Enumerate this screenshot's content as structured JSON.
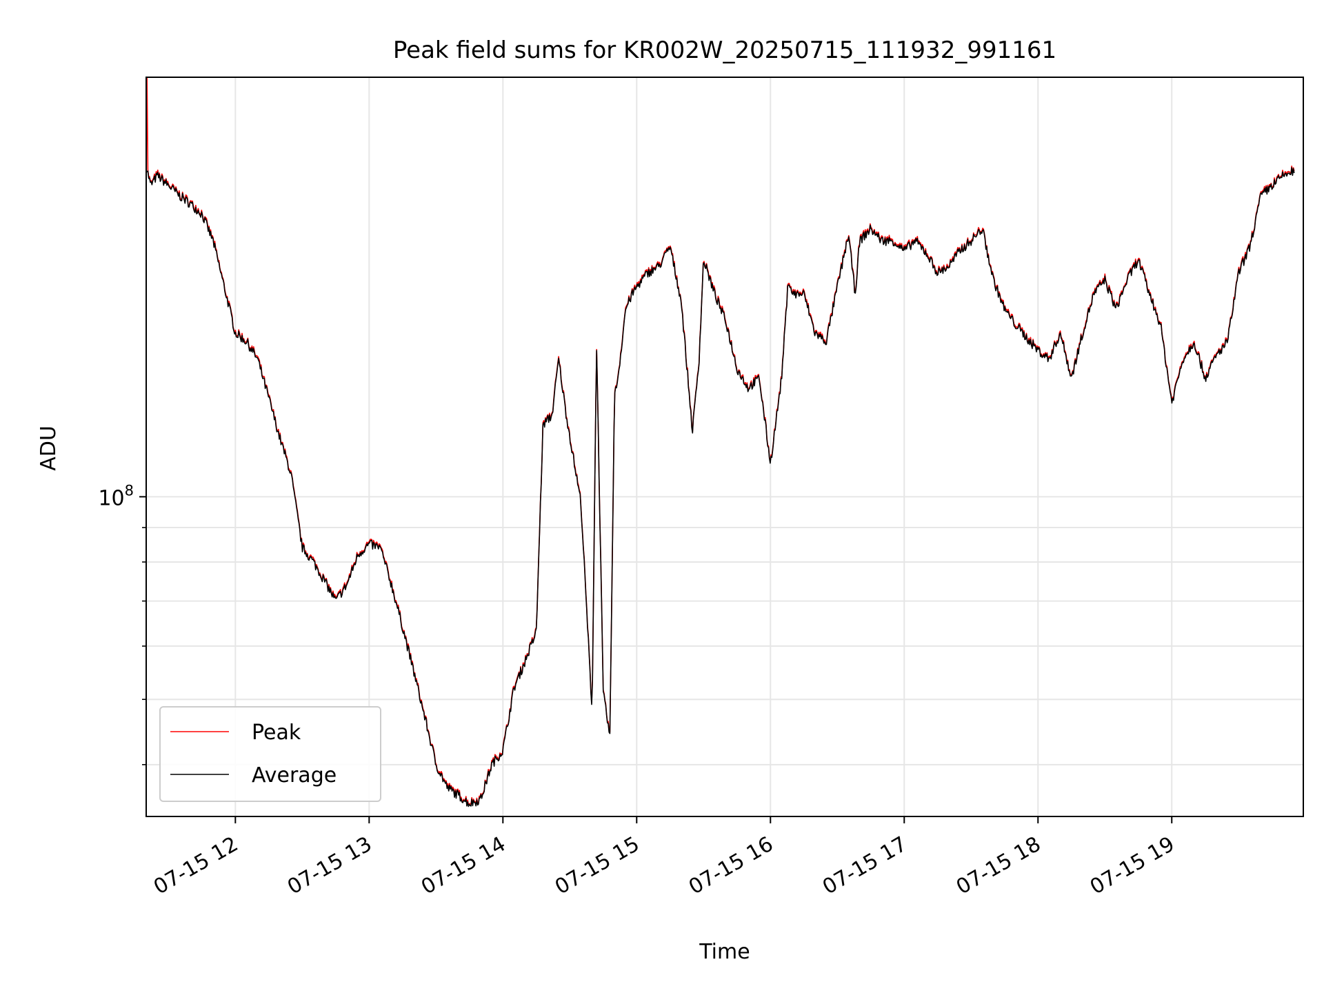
{
  "chart_data": {
    "type": "line",
    "title": "Peak field sums for KR002W_20250715_111932_991161",
    "xlabel": "Time",
    "ylabel": "ADU",
    "y_scale": "log",
    "grid": true,
    "legend_position": "lower-left",
    "x_range": [
      "2025-07-15 11:20",
      "2025-07-15 19:59"
    ],
    "ylim": [
      33500000,
      420000000
    ],
    "x_ticks": [
      {
        "t": "2025-07-15 12:00",
        "label": "07-15 12"
      },
      {
        "t": "2025-07-15 13:00",
        "label": "07-15 13"
      },
      {
        "t": "2025-07-15 14:00",
        "label": "07-15 14"
      },
      {
        "t": "2025-07-15 15:00",
        "label": "07-15 15"
      },
      {
        "t": "2025-07-15 16:00",
        "label": "07-15 16"
      },
      {
        "t": "2025-07-15 17:00",
        "label": "07-15 17"
      },
      {
        "t": "2025-07-15 18:00",
        "label": "07-15 18"
      },
      {
        "t": "2025-07-15 19:00",
        "label": "07-15 19"
      }
    ],
    "y_ticks": [
      {
        "value": 100000000,
        "label_base": "10",
        "label_exp": "8"
      }
    ],
    "y_minor_ticks": [
      40000000,
      50000000,
      60000000,
      70000000,
      80000000,
      90000000
    ],
    "series": [
      {
        "name": "Peak",
        "color": "#ff0000"
      },
      {
        "name": "Average",
        "color": "#000000"
      }
    ],
    "time": [
      "2025-07-15 11:20",
      "2025-07-15 11:22",
      "2025-07-15 11:25",
      "2025-07-15 11:30",
      "2025-07-15 11:35",
      "2025-07-15 11:40",
      "2025-07-15 11:45",
      "2025-07-15 11:50",
      "2025-07-15 12:00",
      "2025-07-15 12:05",
      "2025-07-15 12:10",
      "2025-07-15 12:15",
      "2025-07-15 12:20",
      "2025-07-15 12:25",
      "2025-07-15 12:30",
      "2025-07-15 12:35",
      "2025-07-15 12:40",
      "2025-07-15 12:45",
      "2025-07-15 12:50",
      "2025-07-15 12:55",
      "2025-07-15 13:00",
      "2025-07-15 13:05",
      "2025-07-15 13:10",
      "2025-07-15 13:15",
      "2025-07-15 13:20",
      "2025-07-15 13:25",
      "2025-07-15 13:30",
      "2025-07-15 13:35",
      "2025-07-15 13:40",
      "2025-07-15 13:45",
      "2025-07-15 13:50",
      "2025-07-15 13:55",
      "2025-07-15 14:00",
      "2025-07-15 14:05",
      "2025-07-15 14:10",
      "2025-07-15 14:15",
      "2025-07-15 14:18",
      "2025-07-15 14:22",
      "2025-07-15 14:25",
      "2025-07-15 14:28",
      "2025-07-15 14:32",
      "2025-07-15 14:35",
      "2025-07-15 14:40",
      "2025-07-15 14:42",
      "2025-07-15 14:45",
      "2025-07-15 14:48",
      "2025-07-15 14:50",
      "2025-07-15 14:52",
      "2025-07-15 14:55",
      "2025-07-15 14:58",
      "2025-07-15 15:00",
      "2025-07-15 15:05",
      "2025-07-15 15:10",
      "2025-07-15 15:15",
      "2025-07-15 15:20",
      "2025-07-15 15:25",
      "2025-07-15 15:28",
      "2025-07-15 15:30",
      "2025-07-15 15:35",
      "2025-07-15 15:40",
      "2025-07-15 15:45",
      "2025-07-15 15:50",
      "2025-07-15 15:55",
      "2025-07-15 16:00",
      "2025-07-15 16:05",
      "2025-07-15 16:08",
      "2025-07-15 16:10",
      "2025-07-15 16:15",
      "2025-07-15 16:20",
      "2025-07-15 16:25",
      "2025-07-15 16:30",
      "2025-07-15 16:35",
      "2025-07-15 16:38",
      "2025-07-15 16:40",
      "2025-07-15 16:45",
      "2025-07-15 16:50",
      "2025-07-15 16:55",
      "2025-07-15 17:00",
      "2025-07-15 17:05",
      "2025-07-15 17:10",
      "2025-07-15 17:15",
      "2025-07-15 17:20",
      "2025-07-15 17:25",
      "2025-07-15 17:30",
      "2025-07-15 17:35",
      "2025-07-15 17:40",
      "2025-07-15 17:45",
      "2025-07-15 17:50",
      "2025-07-15 17:55",
      "2025-07-15 18:00",
      "2025-07-15 18:05",
      "2025-07-15 18:10",
      "2025-07-15 18:15",
      "2025-07-15 18:20",
      "2025-07-15 18:25",
      "2025-07-15 18:30",
      "2025-07-15 18:35",
      "2025-07-15 18:40",
      "2025-07-15 18:45",
      "2025-07-15 18:50",
      "2025-07-15 18:55",
      "2025-07-15 19:00",
      "2025-07-15 19:05",
      "2025-07-15 19:10",
      "2025-07-15 19:15",
      "2025-07-15 19:20",
      "2025-07-15 19:25",
      "2025-07-15 19:30",
      "2025-07-15 19:35",
      "2025-07-15 19:40",
      "2025-07-15 19:45",
      "2025-07-15 19:50",
      "2025-07-15 19:55",
      "2025-07-15 19:59"
    ],
    "average": [
      310000000,
      290000000,
      300000000,
      290000000,
      280000000,
      272000000,
      263000000,
      240000000,
      175000000,
      170000000,
      160000000,
      140000000,
      122000000,
      108000000,
      84000000,
      80000000,
      75000000,
      70000000,
      74000000,
      82000000,
      85000000,
      84000000,
      74000000,
      64000000,
      55000000,
      47000000,
      40000000,
      37000000,
      36000000,
      35000000,
      35500000,
      40000000,
      42000000,
      52000000,
      57000000,
      63000000,
      128000000,
      132000000,
      160000000,
      135000000,
      112000000,
      98000000,
      48000000,
      170000000,
      51000000,
      44000000,
      140000000,
      154000000,
      190000000,
      200000000,
      205000000,
      215000000,
      220000000,
      235000000,
      195000000,
      125000000,
      160000000,
      225000000,
      200000000,
      182000000,
      155000000,
      145000000,
      150000000,
      112000000,
      150000000,
      210000000,
      200000000,
      200000000,
      175000000,
      170000000,
      205000000,
      245000000,
      200000000,
      240000000,
      250000000,
      240000000,
      240000000,
      232000000,
      240000000,
      230000000,
      215000000,
      220000000,
      232000000,
      240000000,
      250000000,
      210000000,
      190000000,
      180000000,
      172000000,
      165000000,
      160000000,
      175000000,
      150000000,
      175000000,
      200000000,
      210000000,
      190000000,
      210000000,
      225000000,
      200000000,
      180000000,
      138000000,
      160000000,
      170000000,
      150000000,
      162000000,
      170000000,
      215000000,
      235000000,
      280000000,
      290000000,
      300000000,
      305000000
    ]
  },
  "legend": {
    "peak_label": "Peak",
    "average_label": "Average"
  }
}
